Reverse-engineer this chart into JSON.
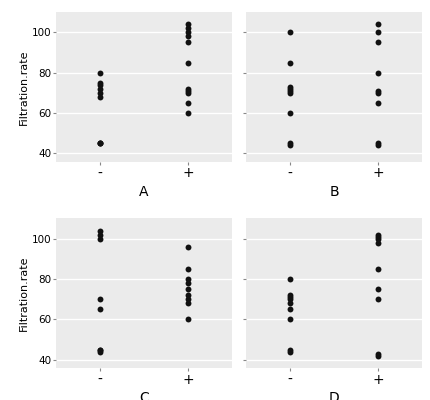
{
  "panels": [
    {
      "label": "A",
      "minus": [
        45,
        45,
        45,
        68,
        70,
        72,
        74,
        75,
        80
      ],
      "plus": [
        60,
        65,
        70,
        71,
        72,
        85,
        95,
        98,
        100,
        102,
        104
      ]
    },
    {
      "label": "B",
      "minus": [
        44,
        45,
        60,
        70,
        71,
        72,
        73,
        85,
        100
      ],
      "plus": [
        44,
        45,
        65,
        70,
        71,
        80,
        95,
        100,
        104
      ]
    },
    {
      "label": "C",
      "minus": [
        44,
        45,
        45,
        65,
        70,
        100,
        102,
        104
      ],
      "plus": [
        60,
        68,
        70,
        72,
        75,
        78,
        80,
        85,
        96
      ]
    },
    {
      "label": "D",
      "minus": [
        44,
        45,
        60,
        65,
        68,
        70,
        71,
        72,
        80
      ],
      "plus": [
        42,
        43,
        70,
        75,
        85,
        98,
        100,
        101,
        102
      ]
    }
  ],
  "ylim": [
    36,
    110
  ],
  "yticks": [
    40,
    60,
    80,
    100
  ],
  "ytick_labels": [
    "40",
    "60",
    "80",
    "100"
  ],
  "xlabel_minus": "-",
  "xlabel_plus": "+",
  "ylabel": "Filtration.rate",
  "bg_color": "#ebebeb",
  "dot_color": "#111111",
  "dot_size": 18,
  "grid_color": "white",
  "label_fontsize": 10,
  "axis_label_fontsize": 8,
  "ytick_fontsize": 7.5
}
